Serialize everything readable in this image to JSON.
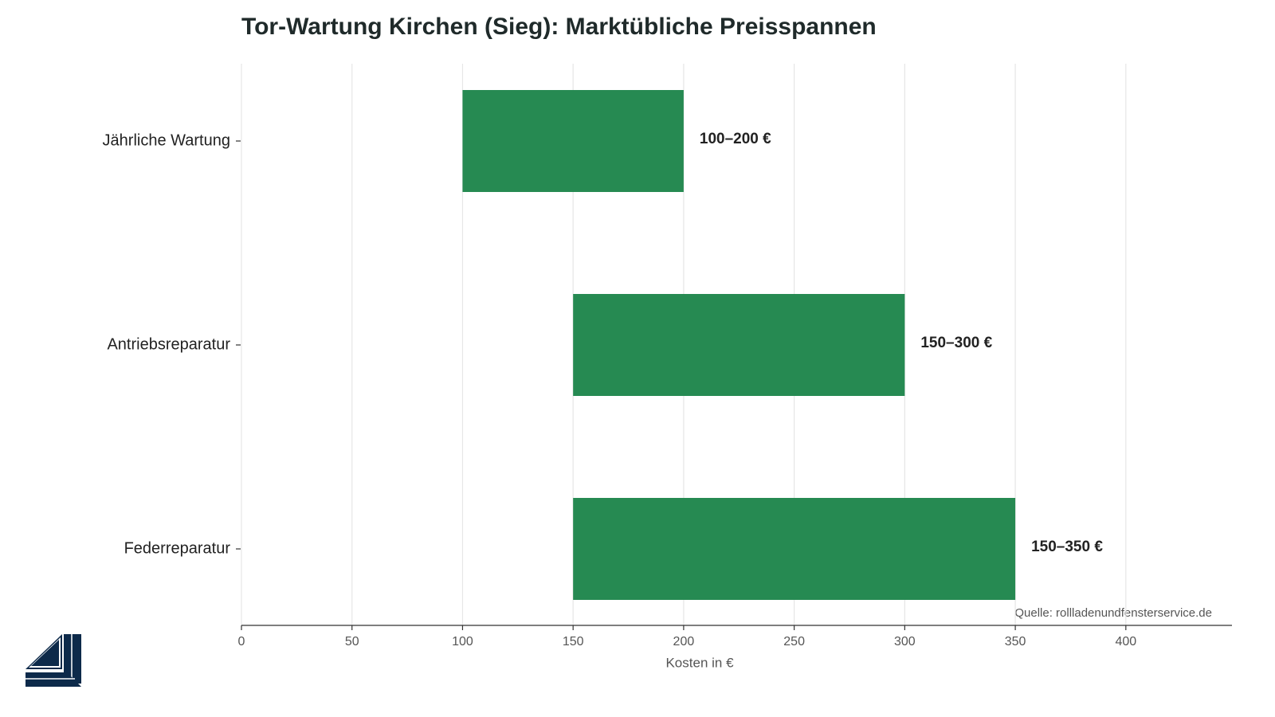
{
  "chart_data": {
    "type": "range-bar",
    "orientation": "horizontal",
    "title": "Tor-Wartung Kirchen (Sieg): Marktübliche Preisspannen",
    "categories": [
      "Jährliche Wartung",
      "Antriebsreparatur",
      "Federreparatur"
    ],
    "ranges": [
      [
        100,
        200
      ],
      [
        150,
        300
      ],
      [
        150,
        350
      ]
    ],
    "value_labels": [
      "100–200 €",
      "150–300 €",
      "150–350 €"
    ],
    "color": "#268a52",
    "xlabel": "Kosten in €",
    "xlim": [
      0,
      448
    ],
    "xticks": [
      0,
      50,
      100,
      150,
      200,
      250,
      300,
      350,
      400
    ],
    "grid": true,
    "source": "Quelle: rollladenundfensterservice.de"
  }
}
